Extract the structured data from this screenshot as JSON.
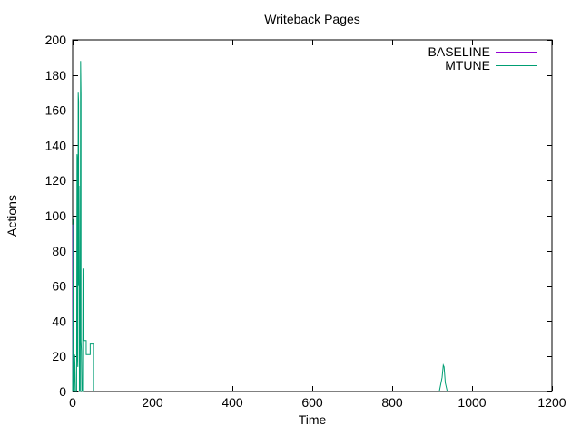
{
  "window": {
    "background": "#ffffff",
    "foreground": "#000000"
  },
  "chart_data": {
    "type": "line",
    "title": "Writeback Pages",
    "xlabel": "Time",
    "ylabel": "Actions",
    "xlim": [
      0,
      1200
    ],
    "ylim": [
      0,
      200
    ],
    "xticks": [
      0,
      200,
      400,
      600,
      800,
      1000,
      1200
    ],
    "yticks": [
      0,
      20,
      40,
      60,
      80,
      100,
      120,
      140,
      160,
      180,
      200
    ],
    "grid": false,
    "tick_style": "inner-mirrored",
    "legend_position": "top-right-inside",
    "legend_entries": [
      "BASELINE",
      "MTUNE"
    ],
    "series": [
      {
        "name": "BASELINE",
        "color": "#9400d3",
        "segments": [
          [
            [
              0,
              0
            ],
            [
              0.5,
              95
            ],
            [
              1,
              60
            ],
            [
              1,
              0
            ]
          ]
        ]
      },
      {
        "name": "MTUNE",
        "color": "#009e73",
        "segments": [
          [
            [
              0,
              0
            ],
            [
              2,
              98
            ],
            [
              2,
              0
            ],
            [
              4,
              0
            ],
            [
              5,
              21
            ],
            [
              6,
              14
            ],
            [
              7,
              0
            ],
            [
              10,
              0
            ],
            [
              11,
              135
            ],
            [
              12,
              131
            ],
            [
              12,
              21
            ],
            [
              13,
              14
            ],
            [
              14,
              170
            ],
            [
              15,
              165
            ],
            [
              15,
              60
            ],
            [
              16,
              117
            ],
            [
              17,
              60
            ],
            [
              17,
              0
            ],
            [
              19,
              0
            ],
            [
              20,
              188
            ],
            [
              21,
              169
            ],
            [
              21,
              29
            ],
            [
              22,
              23
            ],
            [
              23,
              0
            ],
            [
              25,
              0
            ],
            [
              26,
              70
            ],
            [
              27,
              29
            ],
            [
              34,
              29
            ],
            [
              34,
              21
            ],
            [
              44,
              21
            ],
            [
              44,
              27
            ],
            [
              52,
              27
            ],
            [
              52,
              0
            ]
          ],
          [
            [
              918,
              0
            ],
            [
              925,
              8
            ],
            [
              928,
              15
            ],
            [
              930,
              14
            ],
            [
              933,
              5
            ],
            [
              935,
              3
            ],
            [
              938,
              0
            ]
          ]
        ]
      }
    ]
  }
}
